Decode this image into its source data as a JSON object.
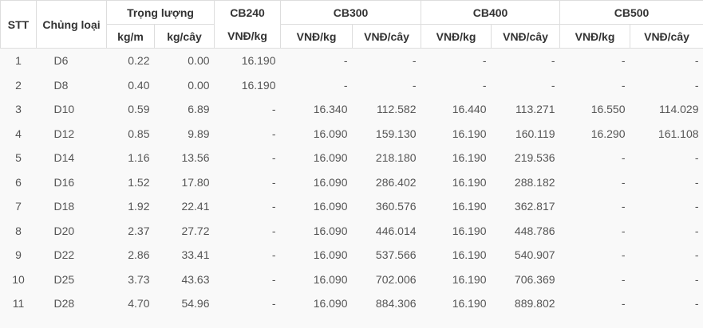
{
  "header": {
    "row1": [
      "STT",
      "Chủng loại",
      "Trọng lượng",
      "CB240",
      "CB300",
      "CB400",
      "CB500"
    ],
    "row2": [
      "kg/m",
      "kg/cây",
      "VNĐ/kg",
      "VNĐ/kg",
      "VNĐ/cây",
      "VNĐ/kg",
      "VNĐ/cây",
      "VNĐ/kg",
      "VNĐ/cây"
    ]
  },
  "table": {
    "rows": [
      [
        "1",
        "D6",
        "0.22",
        "0.00",
        "16.190",
        "-",
        "-",
        "-",
        "-",
        "-",
        "-"
      ],
      [
        "2",
        "D8",
        "0.40",
        "0.00",
        "16.190",
        "-",
        "-",
        "-",
        "-",
        "-",
        "-"
      ],
      [
        "3",
        "D10",
        "0.59",
        "6.89",
        "-",
        "16.340",
        "112.582",
        "16.440",
        "113.271",
        "16.550",
        "114.029"
      ],
      [
        "4",
        "D12",
        "0.85",
        "9.89",
        "-",
        "16.090",
        "159.130",
        "16.190",
        "160.119",
        "16.290",
        "161.108"
      ],
      [
        "5",
        "D14",
        "1.16",
        "13.56",
        "-",
        "16.090",
        "218.180",
        "16.190",
        "219.536",
        "-",
        "-"
      ],
      [
        "6",
        "D16",
        "1.52",
        "17.80",
        "-",
        "16.090",
        "286.402",
        "16.190",
        "288.182",
        "-",
        "-"
      ],
      [
        "7",
        "D18",
        "1.92",
        "22.41",
        "-",
        "16.090",
        "360.576",
        "16.190",
        "362.817",
        "-",
        "-"
      ],
      [
        "8",
        "D20",
        "2.37",
        "27.72",
        "-",
        "16.090",
        "446.014",
        "16.190",
        "448.786",
        "-",
        "-"
      ],
      [
        "9",
        "D22",
        "2.86",
        "33.41",
        "-",
        "16.090",
        "537.566",
        "16.190",
        "540.907",
        "-",
        "-"
      ],
      [
        "10",
        "D25",
        "3.73",
        "43.63",
        "-",
        "16.090",
        "702.006",
        "16.190",
        "706.369",
        "-",
        "-"
      ],
      [
        "11",
        "D28",
        "4.70",
        "54.96",
        "-",
        "16.090",
        "884.306",
        "16.190",
        "889.802",
        "-",
        "-"
      ]
    ]
  }
}
